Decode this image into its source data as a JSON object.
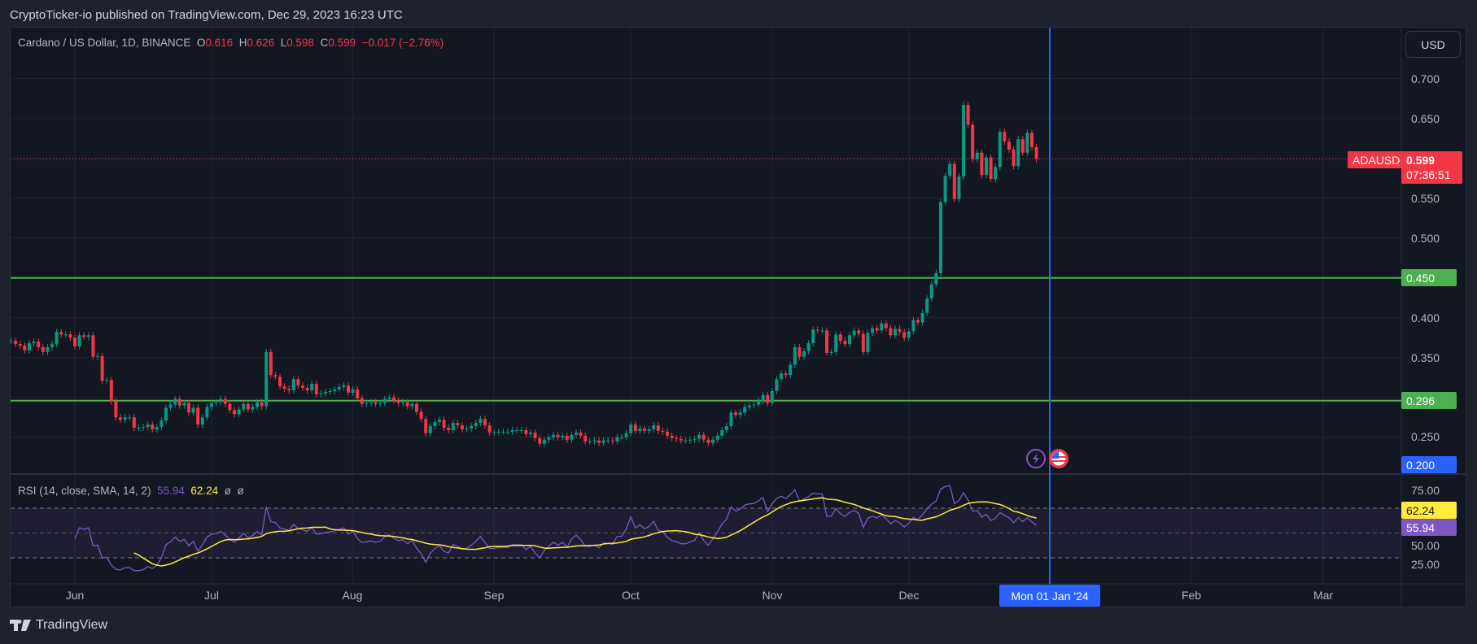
{
  "publish_line": "CryptoTicker-io published on TradingView.com, Dec 29, 2023 16:23 UTC",
  "legend": {
    "symbol": "Cardano / US Dollar, 1D, BINANCE",
    "o_label": "O",
    "o": "0.616",
    "h_label": "H",
    "h": "0.626",
    "l_label": "L",
    "l": "0.598",
    "c_label": "C",
    "c": "0.599",
    "change": "−0.017 (−2.76%)"
  },
  "currency_button": "USD",
  "price_axis": [
    "0.700",
    "0.650",
    "0.550",
    "0.500",
    "0.400",
    "0.350",
    "0.250"
  ],
  "tags": {
    "symbol": "ADAUSD",
    "last_price": "0.599",
    "countdown": "07:36:51",
    "line_high": "0.450",
    "line_low": "0.296",
    "crosshair_price": "0.200",
    "crosshair_date": "Mon 01 Jan '24"
  },
  "time_axis": [
    "Jun",
    "Jul",
    "Aug",
    "Sep",
    "Oct",
    "Nov",
    "Dec",
    "Feb",
    "Mar"
  ],
  "rsi": {
    "legend": "RSI (14, close, SMA, 14, 2)",
    "value": "55.94",
    "sma": "62.24",
    "extra1": "ø",
    "extra2": "ø",
    "axis": [
      "75.00",
      "50.00",
      "25.00"
    ],
    "upper": 70,
    "middle": 50,
    "lower": 30
  },
  "brand": "TradingView",
  "icons": [
    "lightning-event-icon",
    "us-flag-event-icon"
  ],
  "colors": {
    "up": "#089981",
    "down": "#f23645",
    "level_line": "#4caf50",
    "crosshair": "#2962ff",
    "rsi": "#7e57c2",
    "rsi_sma": "#ffeb3b",
    "bg": "#131722"
  },
  "chart_data": {
    "type": "candlestick",
    "symbol": "ADAUSD",
    "interval": "1D",
    "start_date": "2023-05-18",
    "end_date": "2023-12-29",
    "ylim": [
      0.2,
      0.72
    ],
    "horizontal_levels": [
      0.45,
      0.296
    ],
    "last_close": 0.599,
    "close": [
      0.371,
      0.367,
      0.365,
      0.359,
      0.368,
      0.37,
      0.363,
      0.357,
      0.363,
      0.367,
      0.382,
      0.379,
      0.379,
      0.375,
      0.364,
      0.378,
      0.376,
      0.378,
      0.351,
      0.352,
      0.321,
      0.322,
      0.295,
      0.275,
      0.272,
      0.275,
      0.275,
      0.262,
      0.262,
      0.263,
      0.266,
      0.26,
      0.263,
      0.271,
      0.287,
      0.291,
      0.298,
      0.29,
      0.293,
      0.281,
      0.287,
      0.266,
      0.275,
      0.288,
      0.293,
      0.294,
      0.298,
      0.292,
      0.284,
      0.279,
      0.285,
      0.292,
      0.285,
      0.288,
      0.294,
      0.289,
      0.357,
      0.328,
      0.326,
      0.314,
      0.311,
      0.309,
      0.323,
      0.315,
      0.312,
      0.309,
      0.317,
      0.304,
      0.305,
      0.307,
      0.308,
      0.31,
      0.313,
      0.315,
      0.306,
      0.31,
      0.299,
      0.292,
      0.293,
      0.294,
      0.292,
      0.293,
      0.298,
      0.3,
      0.296,
      0.293,
      0.294,
      0.289,
      0.292,
      0.282,
      0.273,
      0.255,
      0.264,
      0.269,
      0.272,
      0.262,
      0.259,
      0.268,
      0.265,
      0.26,
      0.261,
      0.264,
      0.268,
      0.273,
      0.265,
      0.256,
      0.256,
      0.257,
      0.257,
      0.257,
      0.259,
      0.259,
      0.259,
      0.254,
      0.256,
      0.249,
      0.242,
      0.247,
      0.25,
      0.253,
      0.25,
      0.252,
      0.247,
      0.253,
      0.256,
      0.252,
      0.245,
      0.245,
      0.246,
      0.243,
      0.246,
      0.246,
      0.245,
      0.25,
      0.25,
      0.255,
      0.266,
      0.258,
      0.261,
      0.258,
      0.26,
      0.265,
      0.258,
      0.257,
      0.252,
      0.249,
      0.248,
      0.246,
      0.246,
      0.247,
      0.248,
      0.253,
      0.247,
      0.243,
      0.247,
      0.252,
      0.259,
      0.264,
      0.281,
      0.278,
      0.281,
      0.288,
      0.29,
      0.291,
      0.296,
      0.303,
      0.293,
      0.308,
      0.323,
      0.33,
      0.328,
      0.341,
      0.363,
      0.351,
      0.358,
      0.368,
      0.385,
      0.384,
      0.384,
      0.356,
      0.357,
      0.379,
      0.371,
      0.367,
      0.378,
      0.384,
      0.38,
      0.357,
      0.381,
      0.387,
      0.384,
      0.393,
      0.387,
      0.378,
      0.386,
      0.382,
      0.375,
      0.383,
      0.397,
      0.394,
      0.406,
      0.424,
      0.442,
      0.456,
      0.545,
      0.578,
      0.593,
      0.549,
      0.577,
      0.667,
      0.642,
      0.599,
      0.607,
      0.579,
      0.601,
      0.574,
      0.589,
      0.633,
      0.621,
      0.611,
      0.59,
      0.624,
      0.607,
      0.632,
      0.614,
      0.599
    ]
  }
}
